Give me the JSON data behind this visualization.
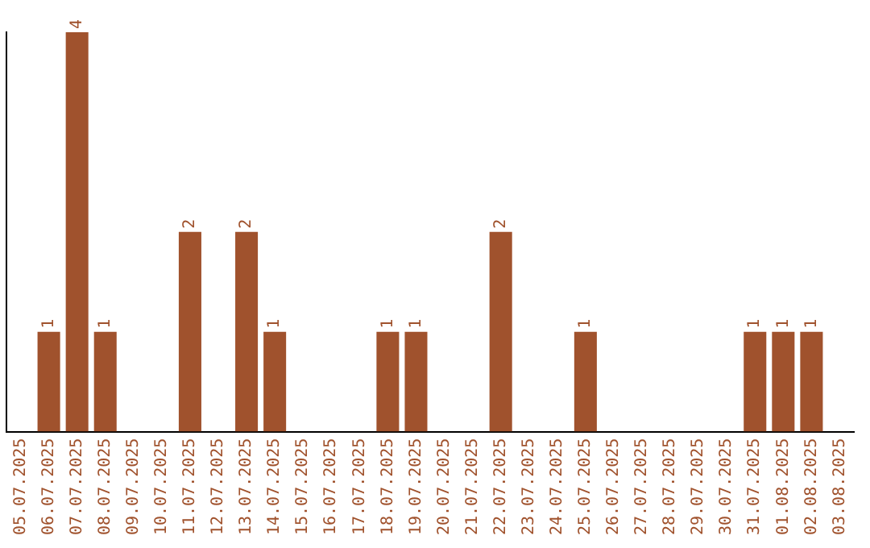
{
  "chart_data": {
    "type": "bar",
    "categories": [
      "05.07.2025",
      "06.07.2025",
      "07.07.2025",
      "08.07.2025",
      "09.07.2025",
      "10.07.2025",
      "11.07.2025",
      "12.07.2025",
      "13.07.2025",
      "14.07.2025",
      "15.07.2025",
      "16.07.2025",
      "17.07.2025",
      "18.07.2025",
      "19.07.2025",
      "20.07.2025",
      "21.07.2025",
      "22.07.2025",
      "23.07.2025",
      "24.07.2025",
      "25.07.2025",
      "26.07.2025",
      "27.07.2025",
      "28.07.2025",
      "29.07.2025",
      "30.07.2025",
      "31.07.2025",
      "01.08.2025",
      "02.08.2025",
      "03.08.2025"
    ],
    "values": [
      0,
      1,
      4,
      1,
      0,
      0,
      2,
      0,
      2,
      1,
      0,
      0,
      0,
      1,
      1,
      0,
      0,
      2,
      0,
      0,
      1,
      0,
      0,
      0,
      0,
      0,
      1,
      1,
      1,
      0
    ],
    "value_labels": [
      null,
      "1",
      "4",
      "1",
      null,
      null,
      "2",
      null,
      "2",
      "1",
      null,
      null,
      null,
      "1",
      "1",
      null,
      null,
      "2",
      null,
      null,
      "1",
      null,
      null,
      null,
      null,
      null,
      "1",
      "1",
      "1",
      null
    ],
    "color": "#a0522d",
    "ylim": [
      0,
      4
    ],
    "tick_labels": "x",
    "grid": false,
    "legend": false
  }
}
